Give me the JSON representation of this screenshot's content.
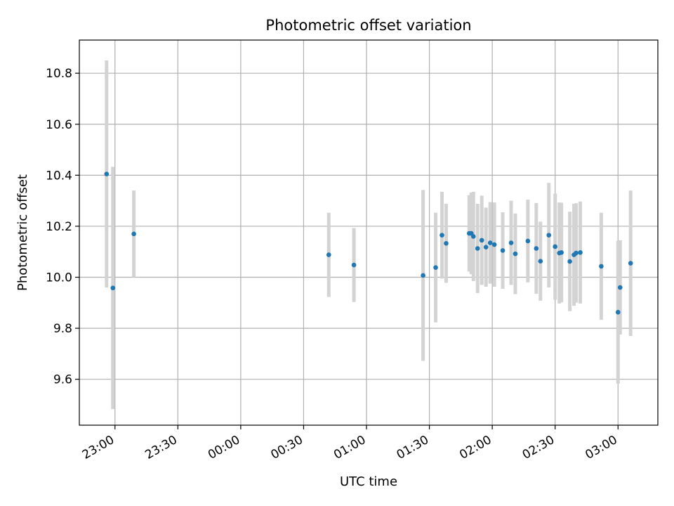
{
  "chart_data": {
    "type": "scatter",
    "title": "Photometric offset variation",
    "xlabel": "UTC time",
    "ylabel": "Photometric offset",
    "x_is_time": true,
    "x_tick_labels": [
      "23:00",
      "23:30",
      "00:00",
      "00:30",
      "01:00",
      "01:30",
      "02:00",
      "02:30",
      "03:00"
    ],
    "x_tick_times": [
      "22:00+60",
      "23:30",
      "24:00",
      "24:30",
      "25:00",
      "25:30",
      "26:00",
      "26:30",
      "27:00"
    ],
    "xlim": [
      "22:43",
      "27:19"
    ],
    "ylim": [
      9.42,
      10.93
    ],
    "y_ticks": [
      9.6,
      9.8,
      10.0,
      10.2,
      10.4,
      10.6,
      10.8
    ],
    "grid": true,
    "marker_color": "#1f77b4",
    "errorbar_color": "#d3d3d3",
    "points": [
      {
        "time": "22:56",
        "y": 10.405,
        "err": 0.445
      },
      {
        "time": "22:59",
        "y": 9.958,
        "err": 0.475
      },
      {
        "time": "23:09",
        "y": 10.17,
        "err": 0.17
      },
      {
        "time": "00:42",
        "y": 10.088,
        "err": 0.165
      },
      {
        "time": "00:54",
        "y": 10.048,
        "err": 0.145
      },
      {
        "time": "01:27",
        "y": 10.007,
        "err": 0.335
      },
      {
        "time": "01:33",
        "y": 10.038,
        "err": 0.215
      },
      {
        "time": "01:36",
        "y": 10.165,
        "err": 0.17
      },
      {
        "time": "01:38",
        "y": 10.133,
        "err": 0.155
      },
      {
        "time": "01:49",
        "y": 10.172,
        "err": 0.15
      },
      {
        "time": "01:50",
        "y": 10.172,
        "err": 0.16
      },
      {
        "time": "01:51",
        "y": 10.16,
        "err": 0.175
      },
      {
        "time": "01:53",
        "y": 10.113,
        "err": 0.175
      },
      {
        "time": "01:55",
        "y": 10.145,
        "err": 0.175
      },
      {
        "time": "01:57",
        "y": 10.118,
        "err": 0.155
      },
      {
        "time": "01:59",
        "y": 10.135,
        "err": 0.16
      },
      {
        "time": "02:01",
        "y": 10.128,
        "err": 0.165
      },
      {
        "time": "02:05",
        "y": 10.105,
        "err": 0.15
      },
      {
        "time": "02:09",
        "y": 10.135,
        "err": 0.165
      },
      {
        "time": "02:11",
        "y": 10.092,
        "err": 0.158
      },
      {
        "time": "02:17",
        "y": 10.142,
        "err": 0.162
      },
      {
        "time": "02:21",
        "y": 10.113,
        "err": 0.178
      },
      {
        "time": "02:23",
        "y": 10.063,
        "err": 0.155
      },
      {
        "time": "02:27",
        "y": 10.165,
        "err": 0.205
      },
      {
        "time": "02:30",
        "y": 10.12,
        "err": 0.208
      },
      {
        "time": "02:32",
        "y": 10.095,
        "err": 0.198
      },
      {
        "time": "02:33",
        "y": 10.097,
        "err": 0.195
      },
      {
        "time": "02:37",
        "y": 10.062,
        "err": 0.195
      },
      {
        "time": "02:39",
        "y": 10.088,
        "err": 0.2
      },
      {
        "time": "02:40",
        "y": 10.095,
        "err": 0.195
      },
      {
        "time": "02:42",
        "y": 10.097,
        "err": 0.2
      },
      {
        "time": "02:52",
        "y": 10.043,
        "err": 0.21
      },
      {
        "time": "03:00",
        "y": 9.863,
        "err": 0.28
      },
      {
        "time": "03:01",
        "y": 9.96,
        "err": 0.185
      },
      {
        "time": "03:06",
        "y": 10.055,
        "err": 0.285
      }
    ]
  }
}
